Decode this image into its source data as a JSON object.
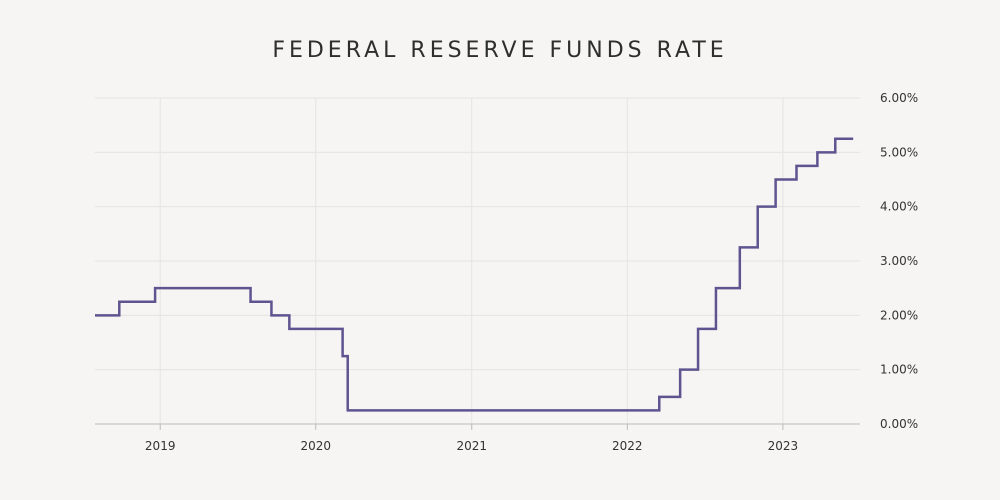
{
  "chart_data": {
    "type": "line",
    "title": "FEDERAL RESERVE FUNDS RATE",
    "xlabel": "",
    "ylabel": "",
    "step": true,
    "grid": true,
    "y_axis_position": "right",
    "xlim": [
      "2018-08-01",
      "2023-07-01"
    ],
    "ylim": [
      0,
      6
    ],
    "y_ticks": [
      {
        "value": 0,
        "label": "0.00%"
      },
      {
        "value": 1,
        "label": "1.00%"
      },
      {
        "value": 2,
        "label": "2.00%"
      },
      {
        "value": 3,
        "label": "3.00%"
      },
      {
        "value": 4,
        "label": "4.00%"
      },
      {
        "value": 5,
        "label": "5.00%"
      },
      {
        "value": 6,
        "label": "6.00%"
      }
    ],
    "x_ticks": [
      {
        "value": "2019-01-01",
        "label": "2019"
      },
      {
        "value": "2020-01-01",
        "label": "2020"
      },
      {
        "value": "2021-01-01",
        "label": "2021"
      },
      {
        "value": "2022-01-01",
        "label": "2022"
      },
      {
        "value": "2023-01-01",
        "label": "2023"
      }
    ],
    "series": [
      {
        "color": "#5e5590",
        "points": [
          {
            "date": "2018-08-01",
            "rate": 2.0
          },
          {
            "date": "2018-09-27",
            "rate": 2.25
          },
          {
            "date": "2018-12-20",
            "rate": 2.5
          },
          {
            "date": "2019-08-01",
            "rate": 2.25
          },
          {
            "date": "2019-09-19",
            "rate": 2.0
          },
          {
            "date": "2019-10-31",
            "rate": 1.75
          },
          {
            "date": "2020-03-04",
            "rate": 1.25
          },
          {
            "date": "2020-03-16",
            "rate": 0.25
          },
          {
            "date": "2022-03-17",
            "rate": 0.5
          },
          {
            "date": "2022-05-05",
            "rate": 1.0
          },
          {
            "date": "2022-06-16",
            "rate": 1.75
          },
          {
            "date": "2022-07-28",
            "rate": 2.5
          },
          {
            "date": "2022-09-22",
            "rate": 3.25
          },
          {
            "date": "2022-11-03",
            "rate": 4.0
          },
          {
            "date": "2022-12-15",
            "rate": 4.5
          },
          {
            "date": "2023-02-02",
            "rate": 4.75
          },
          {
            "date": "2023-03-23",
            "rate": 5.0
          },
          {
            "date": "2023-05-04",
            "rate": 5.25
          },
          {
            "date": "2023-06-15",
            "rate": 5.25
          }
        ]
      }
    ]
  }
}
